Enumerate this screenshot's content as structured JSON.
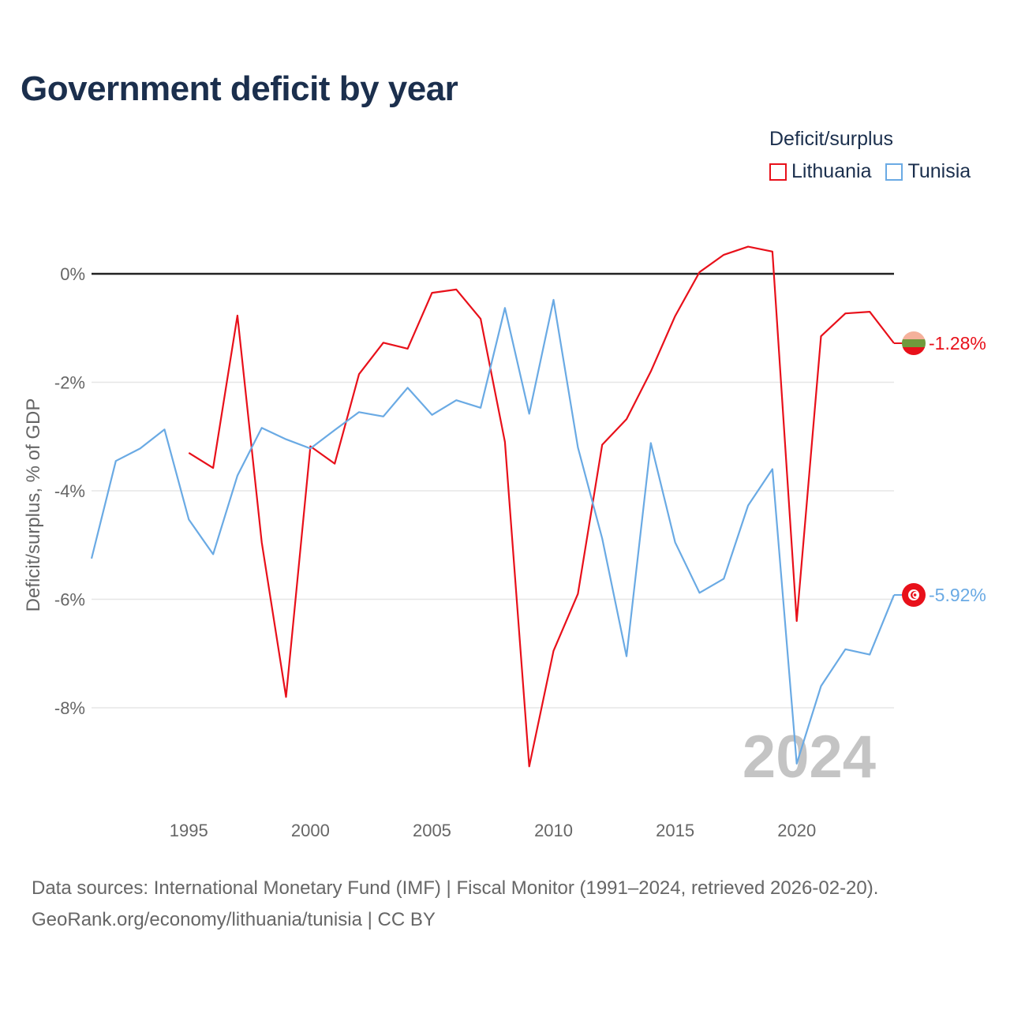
{
  "title": "Government deficit by year",
  "legend": {
    "title": "Deficit/surplus",
    "items": [
      {
        "label": "Lithuania",
        "color": "#e8101a"
      },
      {
        "label": "Tunisia",
        "color": "#6aaae4"
      }
    ]
  },
  "year_watermark": "2024",
  "source": {
    "line1": "Data sources: International Monetary Fund (IMF) | Fiscal Monitor (1991–2024, retrieved 2026-02-20).",
    "line2": "GeoRank.org/economy/lithuania/tunisia | CC BY"
  },
  "chart_data": {
    "type": "line",
    "title": "Government deficit by year",
    "xlabel": "",
    "ylabel": "Deficit/surplus, % of GDP",
    "xlim": [
      1991,
      2024
    ],
    "ylim": [
      -9.5,
      1.0
    ],
    "x_ticks": [
      1995,
      2000,
      2005,
      2010,
      2015,
      2020
    ],
    "y_ticks": [
      0,
      -2,
      -4,
      -6,
      -8
    ],
    "y_tick_labels": [
      "0%",
      "-2%",
      "-4%",
      "-6%",
      "-8%"
    ],
    "grid": true,
    "legend_position": "top-right",
    "series": [
      {
        "name": "Lithuania",
        "color": "#e8101a",
        "end_label": "-1.28%",
        "points": [
          [
            1995,
            -3.3
          ],
          [
            1996,
            -3.58
          ],
          [
            1997,
            -0.77
          ],
          [
            1998,
            -4.95
          ],
          [
            1999,
            -7.8
          ],
          [
            2000,
            -3.18
          ],
          [
            2001,
            -3.5
          ],
          [
            2002,
            -1.85
          ],
          [
            2003,
            -1.27
          ],
          [
            2004,
            -1.38
          ],
          [
            2005,
            -0.35
          ],
          [
            2006,
            -0.29
          ],
          [
            2007,
            -0.83
          ],
          [
            2008,
            -3.1
          ],
          [
            2009,
            -9.08
          ],
          [
            2010,
            -6.95
          ],
          [
            2011,
            -5.9
          ],
          [
            2012,
            -3.15
          ],
          [
            2013,
            -2.68
          ],
          [
            2014,
            -1.8
          ],
          [
            2015,
            -0.78
          ],
          [
            2016,
            0.03
          ],
          [
            2017,
            0.35
          ],
          [
            2018,
            0.5
          ],
          [
            2019,
            0.41
          ],
          [
            2020,
            -6.4
          ],
          [
            2021,
            -1.15
          ],
          [
            2022,
            -0.73
          ],
          [
            2023,
            -0.7
          ],
          [
            2024,
            -1.28
          ]
        ]
      },
      {
        "name": "Tunisia",
        "color": "#6aaae4",
        "end_label": "-5.92%",
        "points": [
          [
            1991,
            -5.25
          ],
          [
            1992,
            -3.45
          ],
          [
            1993,
            -3.22
          ],
          [
            1994,
            -2.87
          ],
          [
            1995,
            -4.53
          ],
          [
            1996,
            -5.17
          ],
          [
            1997,
            -3.72
          ],
          [
            1998,
            -2.84
          ],
          [
            1999,
            -3.05
          ],
          [
            2000,
            -3.22
          ],
          [
            2001,
            -2.88
          ],
          [
            2002,
            -2.55
          ],
          [
            2003,
            -2.63
          ],
          [
            2004,
            -2.1
          ],
          [
            2005,
            -2.6
          ],
          [
            2006,
            -2.33
          ],
          [
            2007,
            -2.47
          ],
          [
            2008,
            -0.63
          ],
          [
            2009,
            -2.58
          ],
          [
            2010,
            -0.48
          ],
          [
            2011,
            -3.2
          ],
          [
            2012,
            -4.88
          ],
          [
            2013,
            -7.05
          ],
          [
            2014,
            -3.12
          ],
          [
            2015,
            -4.95
          ],
          [
            2016,
            -5.88
          ],
          [
            2017,
            -5.62
          ],
          [
            2018,
            -4.27
          ],
          [
            2019,
            -3.6
          ],
          [
            2020,
            -9.03
          ],
          [
            2021,
            -7.6
          ],
          [
            2022,
            -6.92
          ],
          [
            2023,
            -7.02
          ],
          [
            2024,
            -5.92
          ]
        ]
      }
    ]
  }
}
